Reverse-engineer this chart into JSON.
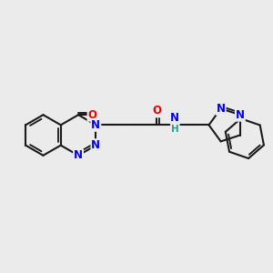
{
  "bg_color": "#ebebeb",
  "bond_color": "#1a1a1a",
  "bond_width": 1.5,
  "atom_colors": {
    "N": "#0000ee",
    "O": "#ee0000",
    "C": "#1a1a1a",
    "H": "#2a9d8f"
  },
  "font_size": 8.5
}
